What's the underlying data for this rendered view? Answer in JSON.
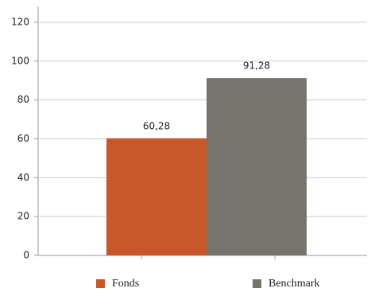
{
  "chart_data": {
    "type": "bar",
    "categories": [
      null
    ],
    "series": [
      {
        "name": "Fonds",
        "color": "#c8572b",
        "values": [
          60.28
        ],
        "value_labels": [
          "60,28"
        ]
      },
      {
        "name": "Benchmark",
        "color": "#77736d",
        "values": [
          91.28
        ],
        "value_labels": [
          "91,28"
        ]
      }
    ],
    "ylim": [
      0,
      120
    ],
    "yticks": [
      0,
      20,
      40,
      60,
      80,
      100,
      120
    ],
    "grid": true
  }
}
